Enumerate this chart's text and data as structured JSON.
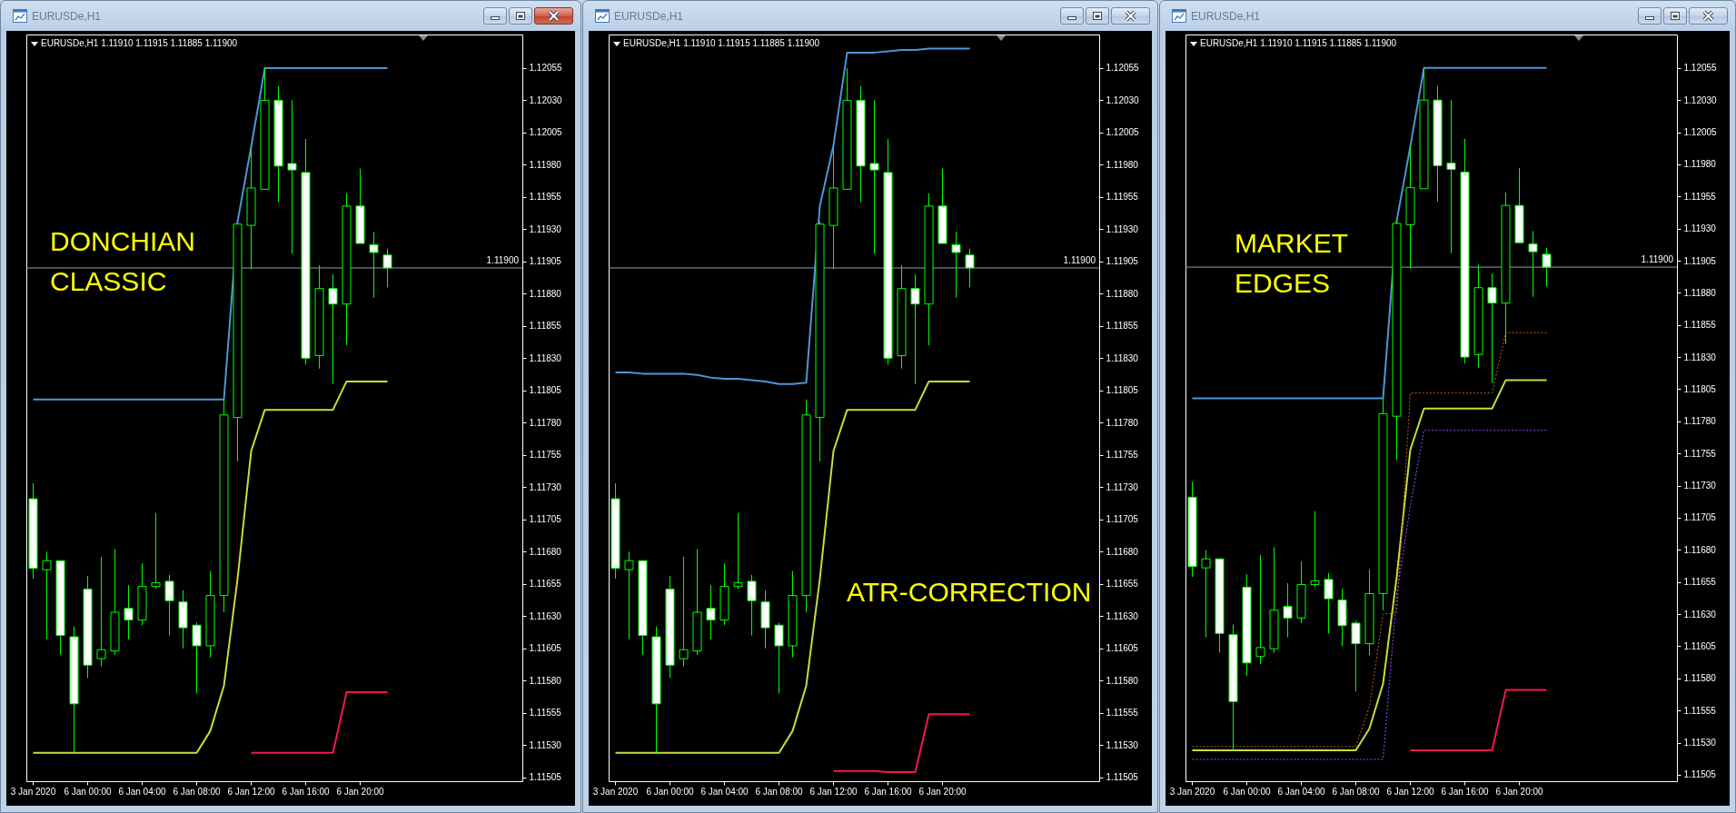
{
  "chart_data": [
    {
      "type": "candlestick",
      "title": "EURUSDe,H1",
      "subtitle": "EURUSDe,H1  1.11910 1.11915 1.11885 1.11900",
      "categories": [
        "3 Jan 2020",
        null,
        null,
        null,
        "6 Jan 00:00",
        null,
        null,
        null,
        "6 Jan 04:00",
        null,
        null,
        null,
        "6 Jan 08:00",
        null,
        null,
        null,
        "6 Jan 12:00",
        null,
        null,
        null,
        "6 Jan 16:00",
        null,
        null,
        null,
        "6 Jan 20:00",
        null,
        null
      ],
      "ohlc": [
        [
          1.11721,
          1.11733,
          1.11659,
          1.11667
        ],
        [
          1.11666,
          1.1168,
          1.11612,
          1.11673
        ],
        [
          1.11673,
          1.11673,
          1.116,
          1.11615
        ],
        [
          1.11614,
          1.11622,
          1.11524,
          1.11562
        ],
        [
          1.11651,
          1.11661,
          1.11582,
          1.11592
        ],
        [
          1.11597,
          1.11676,
          1.11591,
          1.11604
        ],
        [
          1.11603,
          1.11682,
          1.116,
          1.11633
        ],
        [
          1.11636,
          1.11654,
          1.11612,
          1.11627
        ],
        [
          1.11627,
          1.11671,
          1.11623,
          1.11653
        ],
        [
          1.11653,
          1.1171,
          1.11651,
          1.11656
        ],
        [
          1.11657,
          1.11662,
          1.11615,
          1.11642
        ],
        [
          1.11641,
          1.1165,
          1.11605,
          1.11621
        ],
        [
          1.11623,
          1.11625,
          1.1157,
          1.11607
        ],
        [
          1.11607,
          1.11665,
          1.11598,
          1.11646
        ],
        [
          1.11646,
          1.11798,
          1.11633,
          1.11786
        ],
        [
          1.11784,
          1.11936,
          1.1175,
          1.11934
        ],
        [
          1.11933,
          1.11994,
          1.11899,
          1.11962
        ],
        [
          1.11961,
          1.12055,
          1.11961,
          1.1203
        ],
        [
          1.1203,
          1.12041,
          1.11951,
          1.11979
        ],
        [
          1.11981,
          1.1203,
          1.11911,
          1.11976
        ],
        [
          1.11974,
          1.12,
          1.11825,
          1.1183
        ],
        [
          1.11832,
          1.11902,
          1.11822,
          1.11884
        ],
        [
          1.11884,
          1.11895,
          1.1181,
          1.11872
        ],
        [
          1.11872,
          1.11958,
          1.1184,
          1.11948
        ],
        [
          1.11948,
          1.11977,
          1.11919,
          1.11919
        ],
        [
          1.11918,
          1.11928,
          1.11877,
          1.11912
        ],
        [
          1.1191,
          1.11915,
          1.11885,
          1.119
        ]
      ],
      "color": "#00ff00",
      "colors": [
        "#ffffff",
        "#000000",
        "#ffffff",
        "#ffffff",
        "#ffffff",
        "#000000",
        "#000000",
        "#ffffff",
        "#000000",
        "#000000",
        "#ffffff",
        "#ffffff",
        "#ffffff",
        "#000000",
        "#000000",
        "#000000",
        "#000000",
        "#000000",
        "#ffffff",
        "#ffffff",
        "#ffffff",
        "#000000",
        "#ffffff",
        "#000000",
        "#ffffff",
        "#ffffff",
        "#ffffff"
      ],
      "series": [
        {
          "type": "line",
          "color": "#4f95d8",
          "values": [
            1.11798,
            1.11798,
            1.11798,
            1.11798,
            1.11798,
            1.11798,
            1.11798,
            1.11798,
            1.11798,
            1.11798,
            1.11798,
            1.11798,
            1.11798,
            1.11798,
            1.11798,
            1.11936,
            1.11994,
            1.12055,
            1.12055,
            1.12055,
            1.12055,
            1.12055,
            1.12055,
            1.12055,
            1.12055,
            1.12055,
            1.12055
          ]
        },
        {
          "type": "line",
          "color": "#c4df3a",
          "values": [
            1.11524,
            1.11524,
            1.11524,
            1.11524,
            1.11524,
            1.11524,
            1.11524,
            1.11524,
            1.11524,
            1.11524,
            1.11524,
            1.11524,
            1.11524,
            1.11541,
            1.11576,
            1.11659,
            1.11758,
            1.1179,
            1.1179,
            1.1179,
            1.1179,
            1.1179,
            1.1179,
            1.11812,
            1.11812,
            1.11812,
            1.11812
          ]
        },
        {
          "type": "line",
          "color": "#f2184c",
          "values": [
            null,
            null,
            null,
            null,
            null,
            null,
            null,
            null,
            null,
            null,
            null,
            null,
            null,
            null,
            null,
            null,
            1.11524,
            1.11524,
            1.11524,
            1.11524,
            1.11524,
            1.11524,
            1.11524,
            1.11571,
            1.11571,
            1.11571,
            1.11571
          ]
        }
      ],
      "ylim": [
        1.11502,
        1.12081
      ],
      "yticks": [
        1.11505,
        {
          "value": 1.1153,
          "label": "1.11530"
        },
        1.11555,
        {
          "value": 1.1158,
          "label": "1.11580"
        },
        1.11605,
        {
          "value": 1.1163,
          "label": "1.11630"
        },
        1.11655,
        {
          "value": 1.1168,
          "label": "1.11680"
        },
        1.11705,
        {
          "value": 1.1173,
          "label": "1.11730"
        },
        1.11755,
        {
          "value": 1.1178,
          "label": "1.11780"
        },
        1.11805,
        {
          "value": 1.1183,
          "label": "1.11830"
        },
        1.11855,
        {
          "value": 1.1188,
          "label": "1.11880"
        },
        1.11905,
        {
          "value": 1.1193,
          "label": "1.11930"
        },
        1.11955,
        {
          "value": 1.1198,
          "label": "1.11980"
        },
        1.12005,
        {
          "value": 1.1203,
          "label": "1.12030"
        },
        1.12055
      ],
      "ref_lines": [
        {
          "axis": "y",
          "value": 1.119,
          "label": "1.11900",
          "color": "#8d9dac"
        }
      ],
      "annotations": [
        "DONCHIAN CLASSIC"
      ]
    },
    {
      "type": "candlestick",
      "title": "EURUSDe,H1",
      "subtitle": "EURUSDe,H1  1.11910 1.11915 1.11885 1.11900",
      "categories": [
        "3 Jan 2020",
        null,
        null,
        null,
        "6 Jan 00:00",
        null,
        null,
        null,
        "6 Jan 04:00",
        null,
        null,
        null,
        "6 Jan 08:00",
        null,
        null,
        null,
        "6 Jan 12:00",
        null,
        null,
        null,
        "6 Jan 16:00",
        null,
        null,
        null,
        "6 Jan 20:00",
        null,
        null
      ],
      "ohlc": [
        [
          1.11721,
          1.11733,
          1.11659,
          1.11667
        ],
        [
          1.11666,
          1.1168,
          1.11612,
          1.11673
        ],
        [
          1.11673,
          1.11673,
          1.116,
          1.11615
        ],
        [
          1.11614,
          1.11622,
          1.11524,
          1.11562
        ],
        [
          1.11651,
          1.11661,
          1.11582,
          1.11592
        ],
        [
          1.11597,
          1.11676,
          1.11591,
          1.11604
        ],
        [
          1.11603,
          1.11682,
          1.116,
          1.11633
        ],
        [
          1.11636,
          1.11654,
          1.11612,
          1.11627
        ],
        [
          1.11627,
          1.11671,
          1.11623,
          1.11653
        ],
        [
          1.11653,
          1.1171,
          1.11651,
          1.11656
        ],
        [
          1.11657,
          1.11662,
          1.11615,
          1.11642
        ],
        [
          1.11641,
          1.1165,
          1.11605,
          1.11621
        ],
        [
          1.11623,
          1.11625,
          1.1157,
          1.11607
        ],
        [
          1.11607,
          1.11665,
          1.11598,
          1.11646
        ],
        [
          1.11646,
          1.11798,
          1.11633,
          1.11786
        ],
        [
          1.11784,
          1.11936,
          1.1175,
          1.11934
        ],
        [
          1.11933,
          1.11994,
          1.11899,
          1.11962
        ],
        [
          1.11961,
          1.12055,
          1.11961,
          1.1203
        ],
        [
          1.1203,
          1.12041,
          1.11951,
          1.11979
        ],
        [
          1.11981,
          1.1203,
          1.11911,
          1.11976
        ],
        [
          1.11974,
          1.12,
          1.11825,
          1.1183
        ],
        [
          1.11832,
          1.11902,
          1.11822,
          1.11884
        ],
        [
          1.11884,
          1.11895,
          1.1181,
          1.11872
        ],
        [
          1.11872,
          1.11958,
          1.1184,
          1.11948
        ],
        [
          1.11948,
          1.11977,
          1.11919,
          1.11919
        ],
        [
          1.11918,
          1.11928,
          1.11877,
          1.11912
        ],
        [
          1.1191,
          1.11915,
          1.11885,
          1.119
        ]
      ],
      "color": "#00ff00",
      "colors": [
        "#ffffff",
        "#000000",
        "#ffffff",
        "#ffffff",
        "#ffffff",
        "#000000",
        "#000000",
        "#ffffff",
        "#000000",
        "#000000",
        "#ffffff",
        "#ffffff",
        "#ffffff",
        "#000000",
        "#000000",
        "#000000",
        "#000000",
        "#000000",
        "#ffffff",
        "#ffffff",
        "#ffffff",
        "#000000",
        "#ffffff",
        "#000000",
        "#ffffff",
        "#ffffff",
        "#ffffff"
      ],
      "series": [
        {
          "type": "line",
          "color": "#4f95d8",
          "values": [
            1.11819,
            1.11819,
            1.11818,
            1.11818,
            1.11818,
            1.11818,
            1.11817,
            1.11815,
            1.11814,
            1.11814,
            1.11813,
            1.11812,
            1.1181,
            1.1181,
            1.11811,
            1.11948,
            1.11995,
            1.12067,
            1.12067,
            1.12067,
            1.12068,
            1.12069,
            1.12069,
            1.1207,
            1.1207,
            1.1207,
            1.1207
          ]
        },
        {
          "type": "line",
          "color": "#c4df3a",
          "values": [
            1.11524,
            1.11524,
            1.11524,
            1.11524,
            1.11524,
            1.11524,
            1.11524,
            1.11524,
            1.11524,
            1.11524,
            1.11524,
            1.11524,
            1.11524,
            1.11541,
            1.11576,
            1.11659,
            1.11758,
            1.1179,
            1.1179,
            1.1179,
            1.1179,
            1.1179,
            1.1179,
            1.11812,
            1.11812,
            1.11812,
            1.11812
          ]
        },
        {
          "type": "line",
          "color": "#f2184c",
          "values": [
            null,
            null,
            null,
            null,
            null,
            null,
            null,
            null,
            null,
            null,
            null,
            null,
            null,
            null,
            null,
            null,
            1.1151,
            1.1151,
            1.1151,
            1.1151,
            1.11509,
            1.11509,
            1.11509,
            1.11554,
            1.11554,
            1.11554,
            1.11554
          ]
        }
      ],
      "ylim": [
        1.11502,
        1.12081
      ],
      "yticks": [
        1.11505,
        {
          "value": 1.1153,
          "label": "1.11530"
        },
        1.11555,
        {
          "value": 1.1158,
          "label": "1.11580"
        },
        1.11605,
        {
          "value": 1.1163,
          "label": "1.11630"
        },
        1.11655,
        {
          "value": 1.1168,
          "label": "1.11680"
        },
        1.11705,
        {
          "value": 1.1173,
          "label": "1.11730"
        },
        1.11755,
        {
          "value": 1.1178,
          "label": "1.11780"
        },
        1.11805,
        {
          "value": 1.1183,
          "label": "1.11830"
        },
        1.11855,
        {
          "value": 1.1188,
          "label": "1.11880"
        },
        1.11905,
        {
          "value": 1.1193,
          "label": "1.11930"
        },
        1.11955,
        {
          "value": 1.1198,
          "label": "1.11980"
        },
        1.12005,
        {
          "value": 1.1203,
          "label": "1.12030"
        },
        1.12055
      ],
      "ref_lines": [
        {
          "axis": "y",
          "value": 1.119,
          "label": "1.11900",
          "color": "#8d9dac"
        }
      ],
      "annotations": [
        "ATR-CORRECTION"
      ]
    },
    {
      "type": "candlestick",
      "title": "EURUSDe,H1",
      "subtitle": "EURUSDe,H1  1.11910 1.11915 1.11885 1.11900",
      "categories": [
        "3 Jan 2020",
        null,
        null,
        null,
        "6 Jan 00:00",
        null,
        null,
        null,
        "6 Jan 04:00",
        null,
        null,
        null,
        "6 Jan 08:00",
        null,
        null,
        null,
        "6 Jan 12:00",
        null,
        null,
        null,
        "6 Jan 16:00",
        null,
        null,
        null,
        "6 Jan 20:00",
        null,
        null
      ],
      "ohlc": [
        [
          1.11721,
          1.11733,
          1.11659,
          1.11667
        ],
        [
          1.11666,
          1.1168,
          1.11612,
          1.11673
        ],
        [
          1.11673,
          1.11673,
          1.116,
          1.11615
        ],
        [
          1.11614,
          1.11622,
          1.11524,
          1.11562
        ],
        [
          1.11651,
          1.11661,
          1.11582,
          1.11592
        ],
        [
          1.11597,
          1.11676,
          1.11591,
          1.11604
        ],
        [
          1.11603,
          1.11682,
          1.116,
          1.11633
        ],
        [
          1.11636,
          1.11654,
          1.11612,
          1.11627
        ],
        [
          1.11627,
          1.11671,
          1.11623,
          1.11653
        ],
        [
          1.11653,
          1.1171,
          1.11651,
          1.11656
        ],
        [
          1.11657,
          1.11662,
          1.11615,
          1.11642
        ],
        [
          1.11641,
          1.1165,
          1.11605,
          1.11621
        ],
        [
          1.11623,
          1.11625,
          1.1157,
          1.11607
        ],
        [
          1.11607,
          1.11665,
          1.11598,
          1.11646
        ],
        [
          1.11646,
          1.11798,
          1.11633,
          1.11786
        ],
        [
          1.11784,
          1.11936,
          1.1175,
          1.11934
        ],
        [
          1.11933,
          1.11994,
          1.11899,
          1.11962
        ],
        [
          1.11961,
          1.12055,
          1.11961,
          1.1203
        ],
        [
          1.1203,
          1.12041,
          1.11951,
          1.11979
        ],
        [
          1.11981,
          1.1203,
          1.11911,
          1.11976
        ],
        [
          1.11974,
          1.12,
          1.11825,
          1.1183
        ],
        [
          1.11832,
          1.11902,
          1.11822,
          1.11884
        ],
        [
          1.11884,
          1.11895,
          1.1181,
          1.11872
        ],
        [
          1.11872,
          1.11958,
          1.1184,
          1.11948
        ],
        [
          1.11948,
          1.11977,
          1.11919,
          1.11919
        ],
        [
          1.11918,
          1.11928,
          1.11877,
          1.11912
        ],
        [
          1.1191,
          1.11915,
          1.11885,
          1.119
        ]
      ],
      "color": "#00ff00",
      "colors": [
        "#ffffff",
        "#000000",
        "#ffffff",
        "#ffffff",
        "#ffffff",
        "#000000",
        "#000000",
        "#ffffff",
        "#000000",
        "#000000",
        "#ffffff",
        "#ffffff",
        "#ffffff",
        "#000000",
        "#000000",
        "#000000",
        "#000000",
        "#000000",
        "#ffffff",
        "#ffffff",
        "#ffffff",
        "#000000",
        "#ffffff",
        "#000000",
        "#ffffff",
        "#ffffff",
        "#ffffff"
      ],
      "series": [
        {
          "type": "line",
          "color": "#4f95d8",
          "values": [
            1.11798,
            1.11798,
            1.11798,
            1.11798,
            1.11798,
            1.11798,
            1.11798,
            1.11798,
            1.11798,
            1.11798,
            1.11798,
            1.11798,
            1.11798,
            1.11798,
            1.11798,
            1.11936,
            1.11994,
            1.12055,
            1.12055,
            1.12055,
            1.12055,
            1.12055,
            1.12055,
            1.12055,
            1.12055,
            1.12055,
            1.12055
          ]
        },
        {
          "type": "line",
          "color": "#c4df3a",
          "values": [
            1.11524,
            1.11524,
            1.11524,
            1.11524,
            1.11524,
            1.11524,
            1.11524,
            1.11524,
            1.11524,
            1.11524,
            1.11524,
            1.11524,
            1.11524,
            1.11541,
            1.11576,
            1.11659,
            1.11758,
            1.1179,
            1.1179,
            1.1179,
            1.1179,
            1.1179,
            1.1179,
            1.11812,
            1.11812,
            1.11812,
            1.11812
          ]
        },
        {
          "type": "line",
          "color": "#f2184c",
          "values": [
            null,
            null,
            null,
            null,
            null,
            null,
            null,
            null,
            null,
            null,
            null,
            null,
            null,
            null,
            null,
            null,
            1.11524,
            1.11524,
            1.11524,
            1.11524,
            1.11524,
            1.11524,
            1.11524,
            1.11571,
            1.11571,
            1.11571,
            1.11571
          ]
        },
        {
          "type": "line",
          "color": "#b8601f",
          "line_style": "dotted",
          "values": [
            1.11527,
            1.11527,
            1.11527,
            1.11527,
            1.11527,
            1.11527,
            1.11527,
            1.11527,
            1.11527,
            1.11527,
            1.11527,
            1.11527,
            1.11527,
            1.11558,
            1.1163,
            1.11631,
            1.11802,
            1.11802,
            1.11802,
            1.11802,
            1.11802,
            1.11802,
            1.11802,
            1.11849,
            1.11849,
            1.11849,
            1.11849
          ]
        },
        {
          "type": "line",
          "color": "#a047ff",
          "line_style": "dotted",
          "values": [
            1.11517,
            1.11517,
            1.11517,
            1.11517,
            1.11517,
            1.11517,
            1.11517,
            1.11517,
            1.11517,
            1.11517,
            1.11517,
            1.11517,
            1.11517,
            1.11517,
            1.11517,
            1.11645,
            1.11714,
            1.11773,
            1.11773,
            1.11773,
            1.11773,
            1.11773,
            1.11773,
            1.11773,
            1.11773,
            1.11773,
            1.11773
          ]
        }
      ],
      "ylim": [
        1.115,
        1.12081
      ],
      "yticks": [
        1.11505,
        {
          "value": 1.1153,
          "label": "1.11530"
        },
        1.11555,
        {
          "value": 1.1158,
          "label": "1.11580"
        },
        1.11605,
        {
          "value": 1.1163,
          "label": "1.11630"
        },
        1.11655,
        {
          "value": 1.1168,
          "label": "1.11680"
        },
        1.11705,
        {
          "value": 1.1173,
          "label": "1.11730"
        },
        1.11755,
        {
          "value": 1.1178,
          "label": "1.11780"
        },
        1.11805,
        {
          "value": 1.1183,
          "label": "1.11830"
        },
        1.11855,
        {
          "value": 1.1188,
          "label": "1.11880"
        },
        1.11905,
        {
          "value": 1.1193,
          "label": "1.11930"
        },
        1.11955,
        {
          "value": 1.1198,
          "label": "1.11980"
        },
        1.12005,
        {
          "value": 1.1203,
          "label": "1.12030"
        },
        1.12055
      ],
      "ref_lines": [
        {
          "axis": "y",
          "value": 1.119,
          "label": "1.11900",
          "color": "#8d9dac"
        }
      ],
      "annotations": [
        "MARKET EDGES"
      ]
    }
  ]
}
